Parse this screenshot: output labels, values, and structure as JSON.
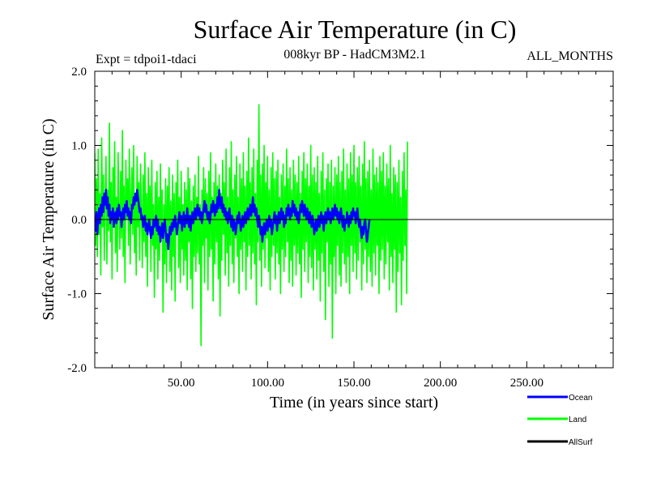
{
  "chart_data": {
    "type": "line",
    "title": "Surface Air Temperature (in C)",
    "subtitle": "008kyr BP - HadCM3M2.1",
    "experiment_label": "Expt = tdpoi1-tdaci",
    "season_label": "ALL_MONTHS",
    "xlabel": "Time (in years since start)",
    "ylabel": "Surface Air Temperature (in C)",
    "xlim": [
      0,
      300
    ],
    "ylim": [
      -2.0,
      2.0
    ],
    "x_ticks": [
      {
        "value": 50,
        "label": "50.00"
      },
      {
        "value": 100,
        "label": "100.00"
      },
      {
        "value": 150,
        "label": "150.00"
      },
      {
        "value": 200,
        "label": "200.00"
      },
      {
        "value": 250,
        "label": "250.00"
      }
    ],
    "y_ticks": [
      {
        "value": 2.0,
        "label": "2.0"
      },
      {
        "value": 1.0,
        "label": "1.0"
      },
      {
        "value": 0.0,
        "label": "0.0"
      },
      {
        "value": -1.0,
        "label": "-1.0"
      },
      {
        "value": -2.0,
        "label": "-2.0"
      }
    ],
    "series": [
      {
        "name": "Land",
        "color": "#00ff00",
        "x_step": 0.5,
        "values": [
          0.9,
          -0.35,
          0.55,
          -0.5,
          0.95,
          -0.2,
          0.35,
          -0.75,
          1.1,
          -0.1,
          0.6,
          -0.55,
          0.2,
          0.85,
          -0.6,
          0.4,
          -0.15,
          1.3,
          -0.3,
          0.5,
          -0.8,
          0.7,
          0.05,
          1.05,
          -0.45,
          0.3,
          -0.7,
          0.9,
          0.1,
          -0.4,
          0.65,
          -0.25,
          1.2,
          -0.5,
          0.45,
          -0.85,
          0.8,
          0.0,
          0.55,
          -0.35,
          0.95,
          -0.6,
          0.3,
          0.7,
          -0.2,
          1.0,
          -0.45,
          0.25,
          -0.75,
          0.85,
          -0.1,
          0.5,
          -0.55,
          0.75,
          0.15,
          -0.65,
          0.6,
          -0.3,
          0.9,
          -0.5,
          0.35,
          -0.9,
          0.7,
          -0.15,
          0.45,
          -0.7,
          0.8,
          -0.35,
          0.2,
          -1.05,
          0.5,
          -0.4,
          0.65,
          -0.8,
          0.3,
          -0.55,
          0.75,
          -0.25,
          0.4,
          -1.25,
          0.2,
          -0.6,
          0.55,
          -0.85,
          0.45,
          -0.3,
          0.7,
          -0.7,
          0.25,
          -0.95,
          0.6,
          -0.5,
          0.35,
          -1.1,
          0.5,
          -0.2,
          0.8,
          -0.65,
          0.3,
          -0.85,
          0.65,
          -0.4,
          0.2,
          -0.75,
          0.5,
          -0.55,
          0.4,
          -0.95,
          0.7,
          -0.3,
          0.55,
          -0.8,
          0.25,
          -1.2,
          0.45,
          -0.5,
          0.6,
          -0.7,
          0.3,
          -0.45,
          0.85,
          -0.6,
          0.2,
          -1.7,
          0.4,
          -0.35,
          0.7,
          -0.85,
          0.55,
          -0.25,
          0.35,
          -0.95,
          0.65,
          -0.5,
          0.9,
          -0.4,
          0.3,
          -1.1,
          0.5,
          -0.6,
          0.75,
          -0.3,
          0.45,
          -0.8,
          0.6,
          -1.3,
          0.35,
          -0.55,
          0.8,
          -0.2,
          0.5,
          -0.75,
          0.95,
          -0.45,
          0.3,
          -0.9,
          0.7,
          -0.35,
          1.05,
          -0.6,
          0.4,
          -0.85,
          0.6,
          -0.25,
          0.85,
          -0.5,
          0.3,
          -1.0,
          0.75,
          -0.4,
          0.55,
          -0.7,
          0.9,
          -0.3,
          0.45,
          -0.95,
          0.65,
          -0.5,
          1.1,
          -0.35,
          0.5,
          -0.8,
          0.7,
          -0.45,
          0.95,
          -0.6,
          0.35,
          -1.15,
          0.8,
          -0.3,
          1.55,
          -0.55,
          0.6,
          -0.9,
          0.75,
          -0.4,
          1.0,
          -0.65,
          0.5,
          -0.25,
          0.85,
          -0.7,
          0.4,
          -0.95,
          0.7,
          -0.5,
          0.9,
          -0.35,
          0.55,
          -0.8,
          0.65,
          -0.45,
          0.8,
          -0.6,
          0.3,
          -1.0,
          0.6,
          -0.4,
          0.75,
          -0.7,
          0.45,
          -0.5,
          0.95,
          -0.3,
          0.55,
          -0.85,
          0.7,
          -0.55,
          0.4,
          -0.9,
          0.8,
          -0.35,
          0.6,
          -0.75,
          0.5,
          -0.45,
          0.85,
          -0.6,
          0.35,
          -1.05,
          0.65,
          -0.4,
          0.9,
          -0.7,
          0.55,
          -0.3,
          0.75,
          -0.85,
          0.45,
          -0.5,
          1.0,
          -0.65,
          0.6,
          -0.95,
          0.7,
          -0.4,
          0.5,
          -0.8,
          0.85,
          -0.55,
          0.35,
          -1.1,
          0.65,
          -0.45,
          0.9,
          -0.7,
          0.4,
          -1.35,
          0.55,
          -0.3,
          0.75,
          -0.9,
          0.5,
          -0.6,
          0.8,
          -1.6,
          0.45,
          -0.5,
          0.7,
          -1.0,
          0.6,
          -0.35,
          0.85,
          -0.75,
          0.5,
          -0.9,
          0.65,
          -0.45,
          0.95,
          -0.6,
          0.4,
          -0.85,
          0.75,
          -0.5,
          0.55,
          -1.0,
          0.9,
          -0.35,
          0.6,
          -0.7,
          1.0,
          -0.45,
          0.5,
          -0.8,
          0.7,
          -0.55,
          0.85,
          -0.3,
          0.45,
          -0.95,
          0.75,
          -0.6,
          1.05,
          -0.4,
          0.55,
          -0.85,
          0.65,
          -0.5,
          0.8,
          -0.7,
          0.4,
          -0.9,
          0.95,
          -0.45,
          0.6,
          -0.75,
          0.7,
          -0.35,
          0.5,
          -1.0,
          0.85,
          -0.55,
          0.65,
          -0.4,
          0.9,
          -0.8,
          0.45,
          -0.6,
          0.75,
          -0.3,
          0.55,
          -0.95,
          1.0,
          -0.5,
          0.35,
          -0.85,
          0.7,
          -0.4,
          0.6,
          -1.25,
          0.5,
          -0.7,
          0.8,
          -0.45,
          0.3,
          -1.15,
          0.65,
          -0.55,
          0.9,
          -0.35,
          0.4,
          -1.0,
          1.05
        ]
      },
      {
        "name": "Ocean",
        "color": "#0000ff",
        "x_step": 0.5,
        "values": [
          0.05,
          -0.15,
          0.1,
          -0.2,
          0.0,
          0.15,
          -0.05,
          0.2,
          0.05,
          0.3,
          0.1,
          0.35,
          0.2,
          0.4,
          0.15,
          0.3,
          0.05,
          0.2,
          -0.05,
          0.1,
          0.0,
          0.15,
          -0.1,
          0.05,
          0.1,
          -0.05,
          0.15,
          0.0,
          0.2,
          0.05,
          0.1,
          -0.1,
          0.05,
          0.15,
          0.0,
          0.2,
          0.1,
          0.25,
          0.05,
          0.15,
          0.0,
          0.1,
          -0.05,
          0.2,
          0.15,
          0.3,
          0.2,
          0.35,
          0.25,
          0.4,
          0.3,
          0.2,
          0.1,
          0.15,
          0.0,
          0.05,
          -0.1,
          0.0,
          0.05,
          -0.15,
          -0.05,
          -0.2,
          -0.1,
          0.0,
          -0.15,
          -0.25,
          -0.1,
          -0.2,
          0.0,
          -0.1,
          -0.05,
          0.05,
          -0.15,
          0.0,
          -0.2,
          -0.1,
          -0.3,
          -0.15,
          -0.05,
          -0.25,
          -0.1,
          0.0,
          -0.15,
          -0.3,
          -0.2,
          -0.4,
          -0.25,
          -0.1,
          -0.2,
          -0.05,
          -0.15,
          0.0,
          -0.1,
          0.05,
          -0.05,
          -0.2,
          -0.1,
          0.0,
          0.1,
          -0.05,
          0.05,
          -0.15,
          0.0,
          0.1,
          -0.1,
          0.05,
          -0.05,
          0.15,
          0.0,
          -0.1,
          0.05,
          -0.15,
          0.0,
          0.1,
          -0.05,
          0.05,
          0.15,
          0.0,
          0.1,
          0.2,
          0.05,
          0.15,
          0.0,
          0.1,
          -0.05,
          0.05,
          0.15,
          0.25,
          0.1,
          0.2,
          0.05,
          0.0,
          0.1,
          -0.05,
          0.05,
          0.2,
          0.1,
          0.25,
          0.15,
          0.05,
          0.2,
          0.1,
          0.3,
          0.15,
          0.4,
          0.25,
          0.15,
          0.3,
          0.1,
          0.2,
          0.05,
          0.15,
          0.0,
          0.1,
          -0.05,
          0.05,
          0.15,
          0.0,
          -0.1,
          0.05,
          -0.15,
          0.0,
          -0.05,
          -0.2,
          -0.1,
          0.05,
          -0.05,
          0.1,
          0.0,
          -0.15,
          -0.05,
          0.05,
          -0.1,
          0.0,
          0.1,
          -0.05,
          0.05,
          0.15,
          0.0,
          0.1,
          0.2,
          0.05,
          0.15,
          0.3,
          0.1,
          0.2,
          0.05,
          0.15,
          0.0,
          -0.1,
          0.05,
          -0.05,
          -0.2,
          -0.1,
          -0.3,
          -0.15,
          -0.05,
          -0.2,
          -0.1,
          0.0,
          -0.15,
          -0.05,
          0.05,
          -0.1,
          0.0,
          -0.2,
          -0.1,
          0.0,
          0.1,
          -0.05,
          0.05,
          -0.15,
          0.0,
          0.1,
          -0.05,
          0.05,
          0.15,
          0.0,
          0.1,
          -0.1,
          0.05,
          -0.05,
          0.15,
          0.05,
          0.2,
          0.1,
          0.0,
          0.15,
          0.05,
          0.25,
          0.1,
          0.2,
          0.05,
          0.15,
          0.0,
          0.1,
          -0.05,
          0.05,
          0.2,
          0.1,
          0.25,
          0.15,
          0.05,
          0.2,
          0.1,
          0.0,
          0.15,
          0.05,
          -0.05,
          0.1,
          0.0,
          -0.1,
          0.05,
          -0.05,
          -0.2,
          -0.1,
          0.0,
          -0.15,
          -0.05,
          0.05,
          -0.1,
          0.0,
          0.1,
          -0.05,
          0.05,
          -0.15,
          0.0,
          0.1,
          -0.05,
          0.05,
          0.15,
          0.0,
          0.1,
          -0.05,
          0.05,
          0.15,
          0.0,
          0.1,
          0.2,
          0.05,
          0.15,
          0.0,
          0.1,
          -0.05,
          0.05,
          0.15,
          0.0,
          -0.1,
          0.05,
          -0.15,
          0.0,
          -0.05,
          0.1,
          0.0,
          -0.1,
          0.05,
          -0.05,
          0.1,
          0.0,
          0.15,
          0.05,
          0.1,
          -0.05,
          0.05,
          0.15,
          0.0,
          -0.1,
          0.0,
          -0.15,
          -0.25,
          -0.1,
          -0.2,
          -0.05,
          0.0,
          -0.15,
          -0.3,
          -0.2,
          -0.1,
          0.0
        ]
      },
      {
        "name": "AllSurf",
        "color": "#000000",
        "x_step": 0.5,
        "values": []
      }
    ],
    "legend": {
      "placement": "bottom-right",
      "entries": [
        {
          "label": "Ocean",
          "color": "#0000ff"
        },
        {
          "label": "Land",
          "color": "#00ff00"
        },
        {
          "label": "AllSurf",
          "color": "#000000"
        }
      ]
    },
    "grid": false,
    "zero_line": true
  }
}
